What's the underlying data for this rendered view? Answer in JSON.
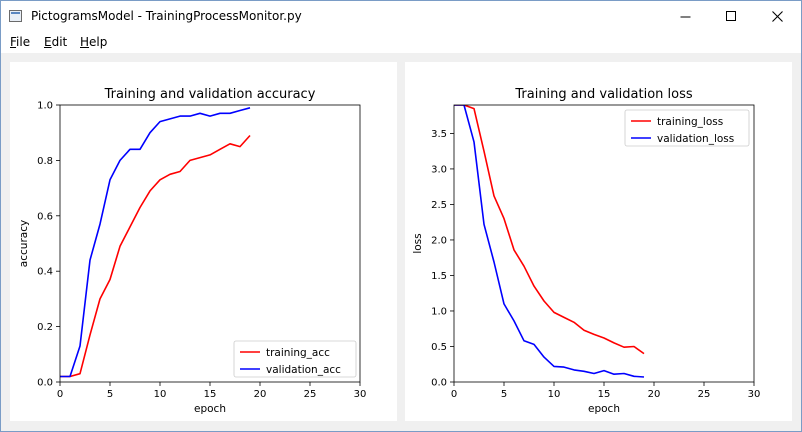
{
  "window": {
    "title": "PictogramsModel - TrainingProcessMonitor.py"
  },
  "menu": {
    "items": [
      {
        "mnemonic": "F",
        "rest": "ile"
      },
      {
        "mnemonic": "E",
        "rest": "dit"
      },
      {
        "mnemonic": "H",
        "rest": "elp"
      }
    ]
  },
  "chart_data": [
    {
      "type": "line",
      "title": "Training and validation accuracy",
      "xlabel": "epoch",
      "ylabel": "accuracy",
      "xlim": [
        0,
        30
      ],
      "ylim": [
        0,
        1.0
      ],
      "xticks": [
        0,
        5,
        10,
        15,
        20,
        25,
        30
      ],
      "yticks": [
        0.0,
        0.2,
        0.4,
        0.6,
        0.8,
        1.0
      ],
      "ytick_labels": [
        "0.0",
        "0.2",
        "0.4",
        "0.6",
        "0.8",
        "1.0"
      ],
      "legend": "lower-right",
      "series": [
        {
          "name": "training_acc",
          "color": "#ff0000",
          "x": [
            0,
            1,
            2,
            3,
            4,
            5,
            6,
            7,
            8,
            9,
            10,
            11,
            12,
            13,
            14,
            15,
            16,
            17,
            18,
            19
          ],
          "y": [
            0.02,
            0.02,
            0.03,
            0.17,
            0.3,
            0.37,
            0.49,
            0.56,
            0.63,
            0.69,
            0.73,
            0.75,
            0.76,
            0.8,
            0.81,
            0.82,
            0.84,
            0.86,
            0.85,
            0.89
          ]
        },
        {
          "name": "validation_acc",
          "color": "#0000ff",
          "x": [
            0,
            1,
            2,
            3,
            4,
            5,
            6,
            7,
            8,
            9,
            10,
            11,
            12,
            13,
            14,
            15,
            16,
            17,
            18,
            19
          ],
          "y": [
            0.02,
            0.02,
            0.13,
            0.44,
            0.57,
            0.73,
            0.8,
            0.84,
            0.84,
            0.9,
            0.94,
            0.95,
            0.96,
            0.96,
            0.97,
            0.96,
            0.97,
            0.97,
            0.98,
            0.99
          ]
        }
      ]
    },
    {
      "type": "line",
      "title": "Training and validation loss",
      "xlabel": "epoch",
      "ylabel": "loss",
      "xlim": [
        0,
        30
      ],
      "ylim": [
        0,
        3.9
      ],
      "xticks": [
        0,
        5,
        10,
        15,
        20,
        25,
        30
      ],
      "yticks": [
        0.0,
        0.5,
        1.0,
        1.5,
        2.0,
        2.5,
        3.0,
        3.5
      ],
      "ytick_labels": [
        "0.0",
        "0.5",
        "1.0",
        "1.5",
        "2.0",
        "2.5",
        "3.0",
        "3.5"
      ],
      "legend": "top-right",
      "series": [
        {
          "name": "training_loss",
          "color": "#ff0000",
          "x": [
            0,
            1,
            2,
            3,
            4,
            5,
            6,
            7,
            8,
            9,
            10,
            11,
            12,
            13,
            14,
            15,
            16,
            17,
            18,
            19
          ],
          "y": [
            3.9,
            3.9,
            3.85,
            3.25,
            2.62,
            2.3,
            1.86,
            1.63,
            1.35,
            1.14,
            0.98,
            0.91,
            0.84,
            0.73,
            0.67,
            0.62,
            0.55,
            0.49,
            0.5,
            0.4
          ]
        },
        {
          "name": "validation_loss",
          "color": "#0000ff",
          "x": [
            0,
            1,
            2,
            3,
            4,
            5,
            6,
            7,
            8,
            9,
            10,
            11,
            12,
            13,
            14,
            15,
            16,
            17,
            18,
            19
          ],
          "y": [
            3.9,
            3.9,
            3.38,
            2.22,
            1.69,
            1.1,
            0.86,
            0.58,
            0.53,
            0.35,
            0.22,
            0.21,
            0.17,
            0.15,
            0.12,
            0.16,
            0.11,
            0.12,
            0.08,
            0.07
          ]
        }
      ]
    }
  ]
}
